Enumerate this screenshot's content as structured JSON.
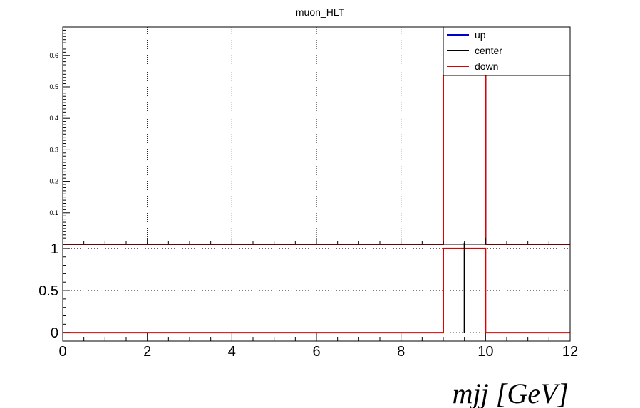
{
  "chart_data": {
    "type": "line",
    "title": "muon_HLT",
    "xlabel": "mjj [GeV]",
    "xlim": [
      0,
      12
    ],
    "x_ticks": [
      "0",
      "2",
      "4",
      "6",
      "8",
      "10",
      "12"
    ],
    "top_panel": {
      "ylim": [
        0,
        0.69
      ],
      "y_ticks": [
        "0.1",
        "0.2",
        "0.3",
        "0.4",
        "0.5",
        "0.6"
      ],
      "grid": "vertical dotted",
      "legend": {
        "position": "top-right",
        "entries": [
          {
            "label": "up",
            "color": "#0000cc"
          },
          {
            "label": "center",
            "color": "#000000"
          },
          {
            "label": "down",
            "color": "#e00000"
          }
        ]
      },
      "series": [
        {
          "name": "up",
          "color": "#0000cc",
          "bin_edges": [
            0,
            9,
            10,
            12
          ],
          "values": [
            0,
            0.68,
            0
          ]
        },
        {
          "name": "center",
          "color": "#000000",
          "bin_edges": [
            0,
            9,
            10,
            12
          ],
          "values": [
            0,
            0.68,
            0
          ]
        },
        {
          "name": "down",
          "color": "#e00000",
          "bin_edges": [
            0,
            9,
            10,
            12
          ],
          "values": [
            0,
            0.68,
            0
          ]
        }
      ]
    },
    "ratio_panel": {
      "ylim": [
        -0.1,
        1.05
      ],
      "y_ticks": [
        "0",
        "0.5",
        "1"
      ],
      "grid": "horizontal dotted",
      "series": [
        {
          "name": "down",
          "color": "#e00000",
          "bin_edges": [
            0,
            9,
            10,
            12
          ],
          "values": [
            0,
            1,
            0
          ]
        },
        {
          "name": "center",
          "color": "#000000",
          "marker_x": 9.5,
          "values": [
            0,
            1
          ]
        }
      ]
    }
  }
}
